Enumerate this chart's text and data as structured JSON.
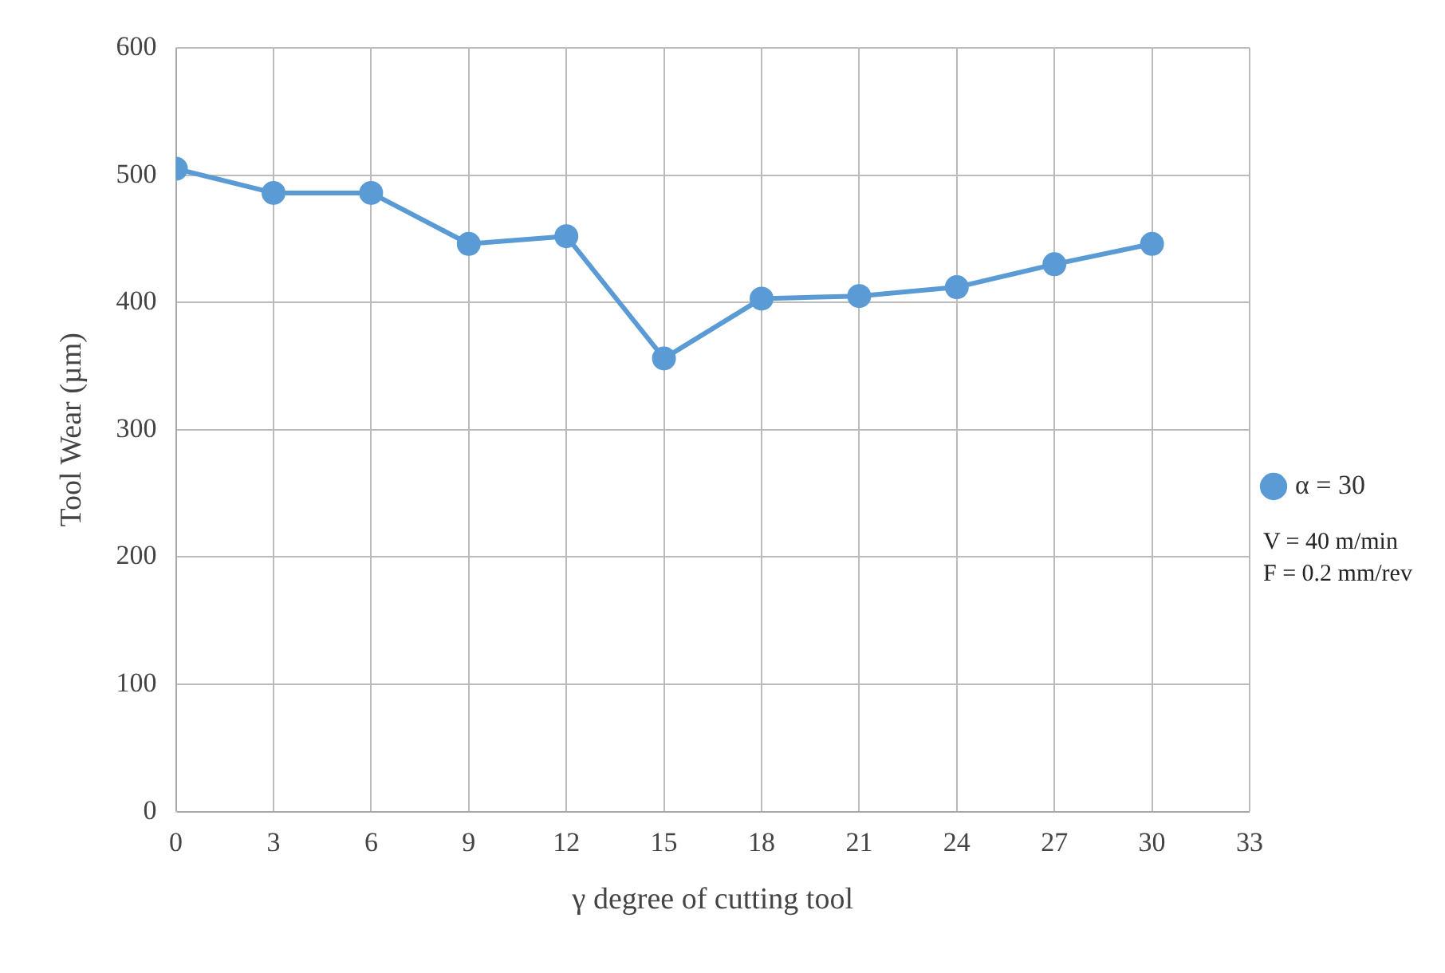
{
  "chart_data": {
    "type": "line",
    "xlabel": "γ degree of cutting tool",
    "ylabel": "Tool Wear (µm)",
    "x": [
      0,
      3,
      6,
      9,
      12,
      15,
      18,
      21,
      24,
      27,
      30
    ],
    "series": [
      {
        "name": "α = 30",
        "color": "#5b9bd5",
        "values": [
          505,
          486,
          486,
          446,
          452,
          356,
          403,
          405,
          412,
          430,
          446
        ]
      }
    ],
    "xlim": [
      0,
      33
    ],
    "xticks": [
      0,
      3,
      6,
      9,
      12,
      15,
      18,
      21,
      24,
      27,
      30,
      33
    ],
    "ylim": [
      0,
      600
    ],
    "yticks": [
      0,
      100,
      200,
      300,
      400,
      500,
      600
    ],
    "grid": true,
    "legend": "right",
    "marker": "circle",
    "line_style": "solid",
    "annotations": [
      "V = 40 m/min",
      "F = 0.2 mm/rev"
    ]
  }
}
